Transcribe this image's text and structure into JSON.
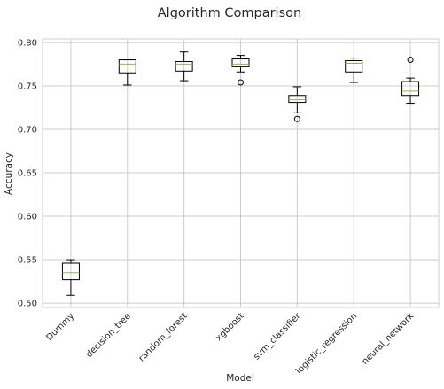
{
  "chart_data": {
    "type": "box",
    "title": "Algorithm Comparison",
    "xlabel": "Model",
    "ylabel": "Accuracy",
    "ylim": [
      0.495,
      0.804
    ],
    "yticks": [
      "0.50",
      "0.55",
      "0.60",
      "0.65",
      "0.70",
      "0.75",
      "0.80"
    ],
    "grid": true,
    "categories": [
      "Dummy",
      "decision_tree",
      "random_forest",
      "xgboost",
      "svm_classifier",
      "logistic_regression",
      "neural_network"
    ],
    "boxes": [
      {
        "whisker_low": 0.509,
        "q1": 0.527,
        "median": 0.535,
        "q3": 0.546,
        "whisker_high": 0.55,
        "outliers": []
      },
      {
        "whisker_low": 0.751,
        "q1": 0.765,
        "median": 0.775,
        "q3": 0.78,
        "whisker_high": 0.78,
        "outliers": []
      },
      {
        "whisker_low": 0.756,
        "q1": 0.767,
        "median": 0.775,
        "q3": 0.778,
        "whisker_high": 0.789,
        "outliers": []
      },
      {
        "whisker_low": 0.766,
        "q1": 0.772,
        "median": 0.775,
        "q3": 0.781,
        "whisker_high": 0.785,
        "outliers": [
          0.754
        ]
      },
      {
        "whisker_low": 0.719,
        "q1": 0.731,
        "median": 0.734,
        "q3": 0.739,
        "whisker_high": 0.749,
        "outliers": [
          0.712
        ]
      },
      {
        "whisker_low": 0.754,
        "q1": 0.766,
        "median": 0.776,
        "q3": 0.779,
        "whisker_high": 0.782,
        "outliers": []
      },
      {
        "whisker_low": 0.73,
        "q1": 0.739,
        "median": 0.744,
        "q3": 0.755,
        "whisker_high": 0.759,
        "outliers": [
          0.78
        ]
      }
    ],
    "colors": {
      "box": "#000000",
      "median": "#8ab45c",
      "grid": "#cccccc",
      "frame": "#cccccc",
      "text": "#262626"
    }
  }
}
